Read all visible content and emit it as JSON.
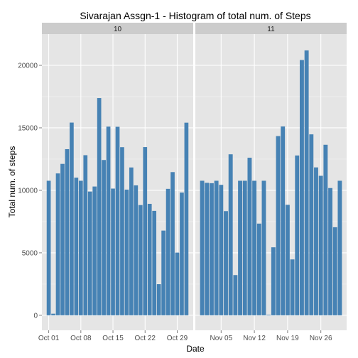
{
  "chart_data": {
    "type": "bar",
    "title": "Sivarajan Assgn-1 - Histogram of total num. of Steps",
    "xlabel": "Date",
    "ylabel": "Total num. of steps",
    "ylim": [
      -1200,
      22500
    ],
    "yticks": [
      0,
      5000,
      10000,
      15000,
      20000
    ],
    "ytick_labels": [
      "0",
      "5000",
      "10000",
      "15000",
      "20000"
    ],
    "grid": true,
    "bar_color": "#4682B4",
    "panel_background": "#E5E5E5",
    "strip_background": "#CCCCCC",
    "facets": [
      {
        "strip": "10",
        "month": 10,
        "first_day": 1,
        "x_range_days": [
          1,
          31
        ],
        "xticks": [
          {
            "day": 1,
            "label": "Oct 01"
          },
          {
            "day": 8,
            "label": "Oct 08"
          },
          {
            "day": 15,
            "label": "Oct 15"
          },
          {
            "day": 22,
            "label": "Oct 22"
          },
          {
            "day": 29,
            "label": "Oct 29"
          }
        ],
        "values": [
          10766,
          126,
          11352,
          12116,
          13294,
          15420,
          11015,
          10766,
          12811,
          9900,
          10304,
          17382,
          12426,
          15098,
          10139,
          15084,
          13452,
          10056,
          11829,
          10395,
          8821,
          13460,
          8918,
          8355,
          2492,
          6778,
          10119,
          11458,
          5018,
          9819,
          15414
        ]
      },
      {
        "strip": "11",
        "month": 11,
        "first_day": 1,
        "x_range_days": [
          1,
          30
        ],
        "xticks": [
          {
            "day": 5,
            "label": "Nov 05"
          },
          {
            "day": 12,
            "label": "Nov 12"
          },
          {
            "day": 19,
            "label": "Nov 19"
          },
          {
            "day": 26,
            "label": "Nov 26"
          }
        ],
        "values": [
          10766,
          10600,
          10571,
          10766,
          10439,
          8334,
          12883,
          3219,
          10766,
          10766,
          12608,
          10765,
          7336,
          10766,
          41,
          5441,
          14339,
          15110,
          8841,
          4472,
          12787,
          20427,
          21194,
          14478,
          11834,
          11162,
          13646,
          10183,
          7047,
          10766
        ]
      }
    ]
  }
}
